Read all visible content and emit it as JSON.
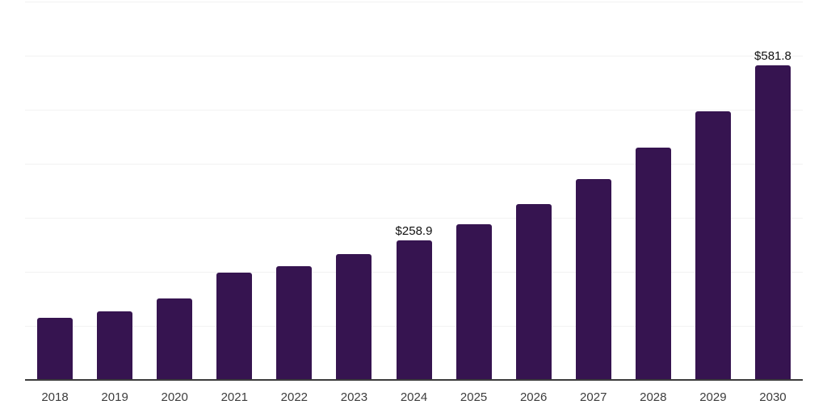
{
  "chart_data": {
    "type": "bar",
    "title": "",
    "xlabel": "",
    "ylabel": "",
    "categories": [
      "2018",
      "2019",
      "2020",
      "2021",
      "2022",
      "2023",
      "2024",
      "2025",
      "2026",
      "2027",
      "2028",
      "2029",
      "2030"
    ],
    "values": [
      115.0,
      127.6,
      150.9,
      198.9,
      211.0,
      233.3,
      258.9,
      288.3,
      325.6,
      371.9,
      429.8,
      497.0,
      581.8
    ],
    "value_labels": {
      "2024": "$258.9",
      "2030": "$581.8"
    },
    "ylim": [
      0,
      700
    ],
    "gridline_step": 100,
    "grid": true,
    "legend": false,
    "y_tick_labels_visible": false,
    "colors": {
      "bar": "#361450",
      "gridline": "#f2f2f2",
      "axis_line": "#3c3c3c",
      "tick_label": "#3d3d3d",
      "value_label": "#111111",
      "background": "#ffffff"
    }
  }
}
